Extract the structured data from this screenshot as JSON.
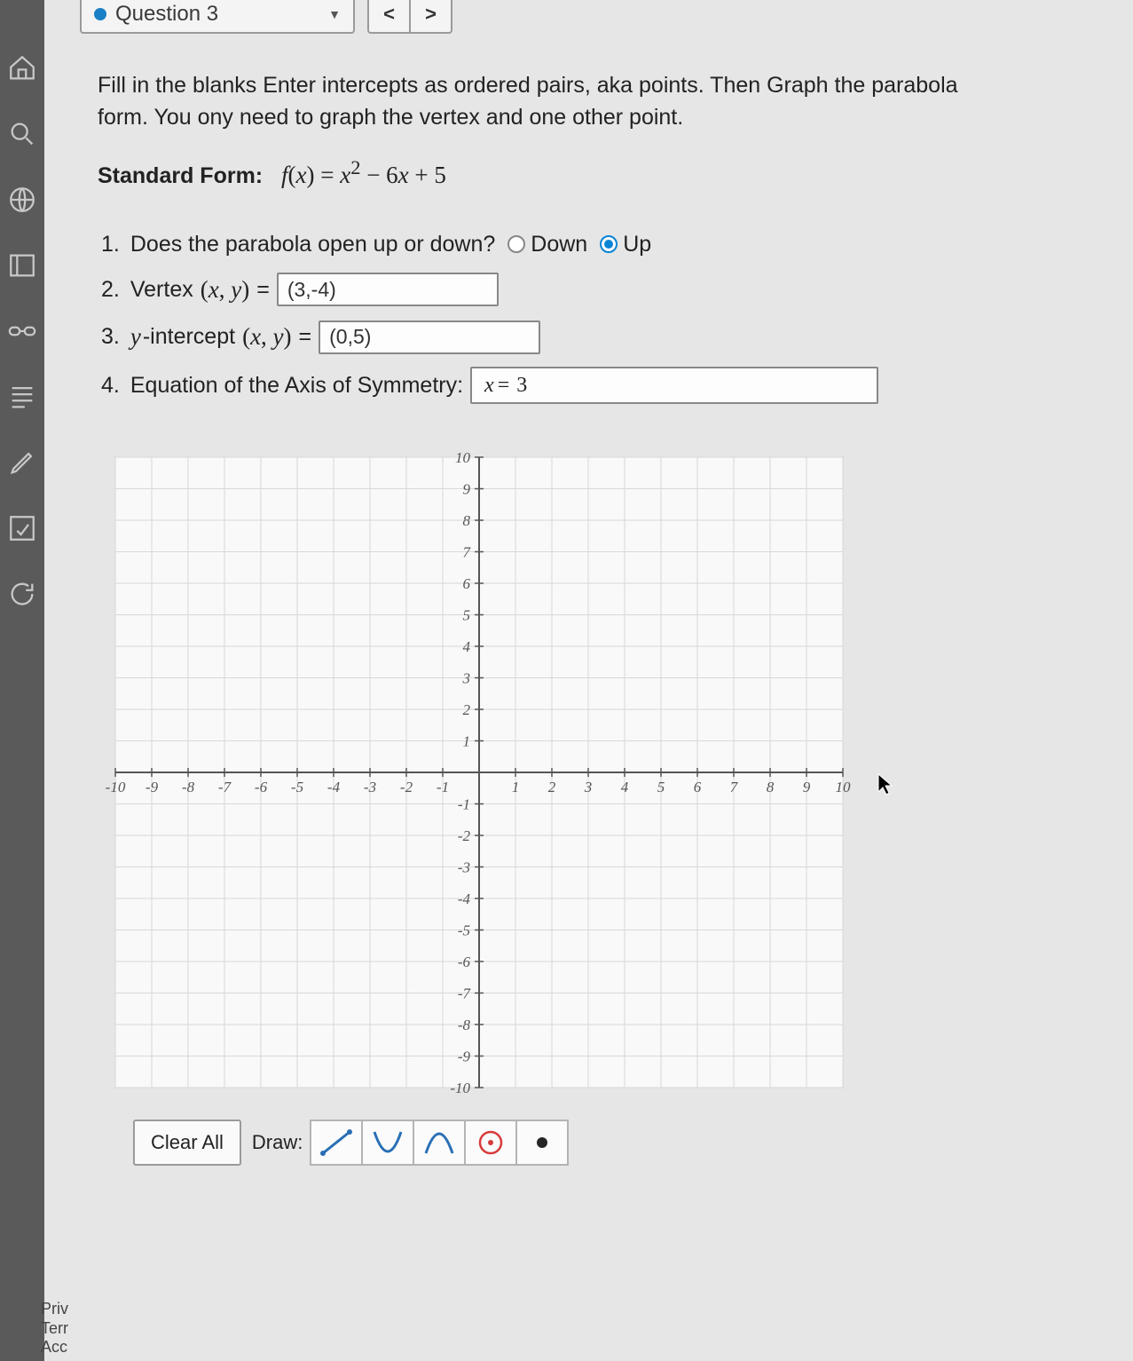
{
  "header": {
    "question_label": "Question 3",
    "prev_glyph": "<",
    "next_glyph": ">"
  },
  "instructions": {
    "line1": "Fill in the blanks Enter intercepts as ordered pairs, aka points. Then Graph the parabola",
    "line2": "form. You ony need to graph the vertex and one other point."
  },
  "standard_form": {
    "label": "Standard Form:",
    "expr_lhs": "f(x)",
    "expr_rhs": "x² − 6x + 5"
  },
  "questions": {
    "q1": {
      "num": "1.",
      "text": "Does the parabola open up or down?",
      "opt_down": "Down",
      "opt_up": "Up",
      "selected": "up"
    },
    "q2": {
      "num": "2.",
      "label_pre": "Vertex",
      "paren": "(x, y)",
      "eq": "=",
      "value": "(3,-4)"
    },
    "q3": {
      "num": "3.",
      "label_pre": "y-intercept",
      "paren": "(x, y)",
      "eq": "=",
      "value": "(0,5)"
    },
    "q4": {
      "num": "4.",
      "label": "Equation of the Axis of Symmetry:",
      "value_var": "x",
      "value_eq": "=",
      "value_rhs": "3"
    }
  },
  "graph": {
    "xmin": -10,
    "xmax": 10,
    "ymin": -10,
    "ymax": 10,
    "tick_step": 1,
    "background": "#f9f9f9",
    "minor_grid_color": "#d8d8d8",
    "major_grid_color": "#bfbfbf",
    "axis_color": "#555555",
    "label_color": "#555555",
    "label_fontsize": 17,
    "label_font": "cursive"
  },
  "toolbar": {
    "clear_label": "Clear All",
    "draw_label": "Draw:",
    "tool_colors": {
      "line": "#2a6fb5",
      "parabola_up": "#2a6fb5",
      "parabola_down": "#2a6fb5",
      "circle_border": "#d83a3a",
      "circle_dot": "#d83a3a",
      "dot": "#262626"
    }
  },
  "footer": {
    "l1": "Priv",
    "l2": "Terr",
    "l3": "Acc"
  },
  "colors": {
    "page_bg": "#e6e6e6",
    "rail_bg": "#5a5a5a",
    "accent": "#0a84d6"
  }
}
